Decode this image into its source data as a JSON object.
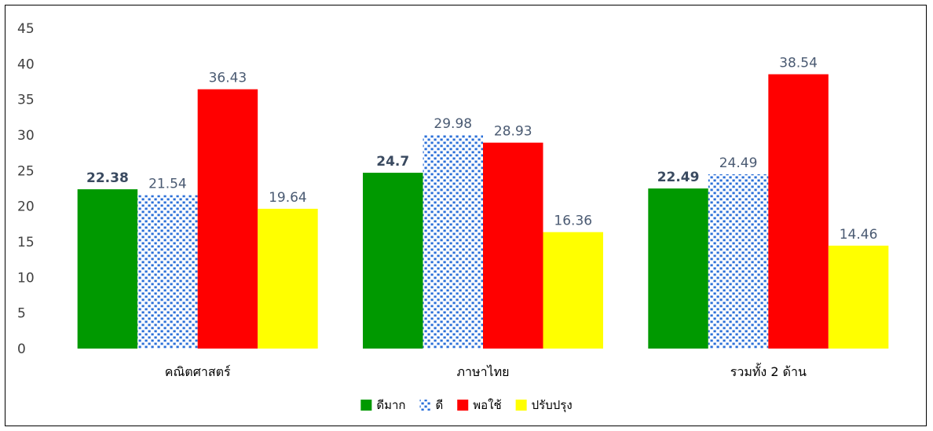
{
  "chart_data": {
    "type": "bar",
    "categories": [
      "คณิตศาสตร์",
      "ภาษาไทย",
      "รวมทั้ง 2 ด้าน"
    ],
    "series": [
      {
        "name": "ดีมาก",
        "values": [
          22.38,
          24.7,
          22.49
        ],
        "color": "#009900",
        "pattern": "solid",
        "label_bold": true
      },
      {
        "name": "ดี",
        "values": [
          21.54,
          29.98,
          24.49
        ],
        "color": "#2a6fd8",
        "pattern": "dotted",
        "label_bold": false
      },
      {
        "name": "พอใช้",
        "values": [
          36.43,
          28.93,
          38.54
        ],
        "color": "#ff0000",
        "pattern": "solid",
        "label_bold": false
      },
      {
        "name": "ปรับปรุง",
        "values": [
          19.64,
          16.36,
          14.46
        ],
        "color": "#ffff00",
        "pattern": "solid",
        "label_bold": false
      }
    ],
    "value_labels": [
      [
        "22.38",
        "21.54",
        "36.43",
        "19.64"
      ],
      [
        "24.7",
        "29.98",
        "28.93",
        "16.36"
      ],
      [
        "22.49",
        "24.49",
        "38.54",
        "14.46"
      ]
    ],
    "yticks": [
      "0",
      "5",
      "10",
      "15",
      "20",
      "25",
      "30",
      "35",
      "40",
      "45"
    ],
    "ylim": [
      0,
      45
    ],
    "grid": false,
    "legend_position": "bottom",
    "title": "",
    "xlabel": "",
    "ylabel": ""
  }
}
